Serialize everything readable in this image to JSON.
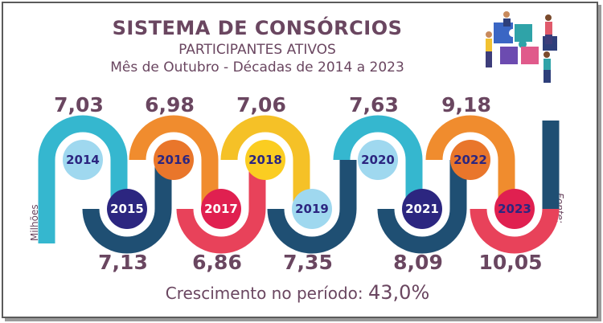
{
  "header": {
    "title": "SISTEMA DE CONSÓRCIOS",
    "subtitle": "PARTICIPANTES ATIVOS",
    "subtitle2": "Mês de Outubro - Décadas de 2014 a 2023"
  },
  "side_label_left": "Milhões",
  "side_label_right": "Fonte: ABAC",
  "footer": {
    "label": "Crescimento no período:",
    "value": "43,0%"
  },
  "colors": {
    "cyan": "#35b7cf",
    "navy": "#1f4f73",
    "orange": "#f08c2e",
    "red": "#e8425a",
    "yellow": "#f5c127",
    "light_blue_badge": "#9fd8ef",
    "orange_badge": "#e9762b",
    "indigo_badge": "#2c2680",
    "red_badge": "#e02050",
    "yellow_badge": "#fbcd21",
    "text": "#6a4660"
  },
  "chart_data": {
    "type": "infographic-timeline",
    "title": "SISTEMA DE CONSÓRCIOS",
    "subtitle": "PARTICIPANTES ATIVOS",
    "unit": "Milhões",
    "categories": [
      "2014",
      "2015",
      "2016",
      "2017",
      "2018",
      "2019",
      "2020",
      "2021",
      "2022",
      "2023"
    ],
    "values": [
      7.03,
      7.13,
      6.98,
      6.86,
      7.06,
      7.35,
      7.63,
      8.09,
      9.18,
      10.05
    ],
    "value_labels": [
      "7,03",
      "7,13",
      "6,98",
      "6,86",
      "7,06",
      "7,35",
      "7,63",
      "8,09",
      "9,18",
      "10,05"
    ],
    "growth": "43,0%"
  }
}
